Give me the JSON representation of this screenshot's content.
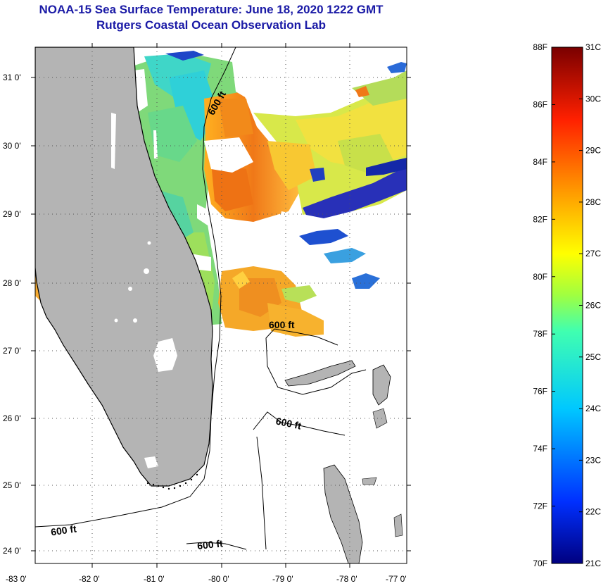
{
  "title": {
    "line1": "NOAA-15 Sea Surface Temperature:  June 18, 2020 1222 GMT",
    "line2": "Rutgers Coastal Ocean Observation Lab"
  },
  "map": {
    "lon_range": [
      -83.0,
      -76.8
    ],
    "lat_range": [
      23.8,
      31.4
    ],
    "lat_ticks": [
      "31 0'",
      "30 0'",
      "29 0'",
      "28 0'",
      "27 0'",
      "26 0'",
      "25 0'",
      "24 0'"
    ],
    "lon_ticks": [
      "-83 0'",
      "-82 0'",
      "-81 0'",
      "-80 0'",
      "-79 0'",
      "-78 0'",
      "-77 0'"
    ],
    "contour_labels": [
      "600 ft",
      "600 ft",
      "600 ft",
      "600 ft",
      "600 ft"
    ]
  },
  "colorbar": {
    "fahrenheit": [
      "88F",
      "86F",
      "84F",
      "82F",
      "80F",
      "78F",
      "76F",
      "74F",
      "72F",
      "70F"
    ],
    "celsius": [
      "31C",
      "30C",
      "29C",
      "28C",
      "27C",
      "26C",
      "25C",
      "24C",
      "23C",
      "22C",
      "21C"
    ],
    "f_range": [
      70,
      88
    ],
    "c_range": [
      21,
      31
    ]
  },
  "colors": {
    "title": "#1a1aa6",
    "land": "#b4b4b4",
    "warm": "#f08a1e",
    "mid": "#8ed66a",
    "cool": "#30d8d8",
    "cold": "#1428b4"
  }
}
